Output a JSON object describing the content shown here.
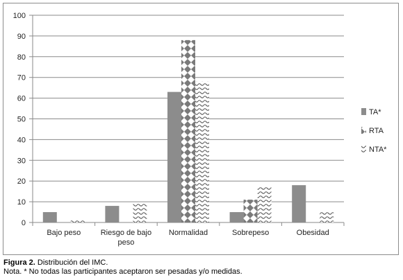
{
  "chart_data": {
    "type": "bar",
    "categories": [
      "Bajo peso",
      "Riesgo de bajo peso",
      "Normalidad",
      "Sobrepeso",
      "Obesidad"
    ],
    "category_lines": [
      [
        "Bajo peso"
      ],
      [
        "Riesgo de bajo",
        "peso"
      ],
      [
        "Normalidad"
      ],
      [
        "Sobrepeso"
      ],
      [
        "Obesidad"
      ]
    ],
    "series": [
      {
        "name": "TA*",
        "values": [
          5,
          8,
          63,
          5,
          18
        ],
        "color": "#8c8c8c",
        "pattern": "solid"
      },
      {
        "name": "RTA",
        "values": [
          0,
          0,
          88,
          11,
          0
        ],
        "color": "#7a7a7a",
        "pattern": "diamond"
      },
      {
        "name": "NTA*",
        "values": [
          1,
          9,
          68,
          17,
          5
        ],
        "color": "#6e6e6e",
        "pattern": "wave"
      }
    ],
    "ylim": [
      0,
      100
    ],
    "yticks": [
      0,
      10,
      20,
      30,
      40,
      50,
      60,
      70,
      80,
      90,
      100
    ],
    "grid": true,
    "legend_position": "right"
  },
  "caption": {
    "figure_label": "Figura 2.",
    "title": "Distribución del IMC.",
    "note": "Nota. * No todas las participantes aceptaron ser pesadas y/o medidas."
  }
}
